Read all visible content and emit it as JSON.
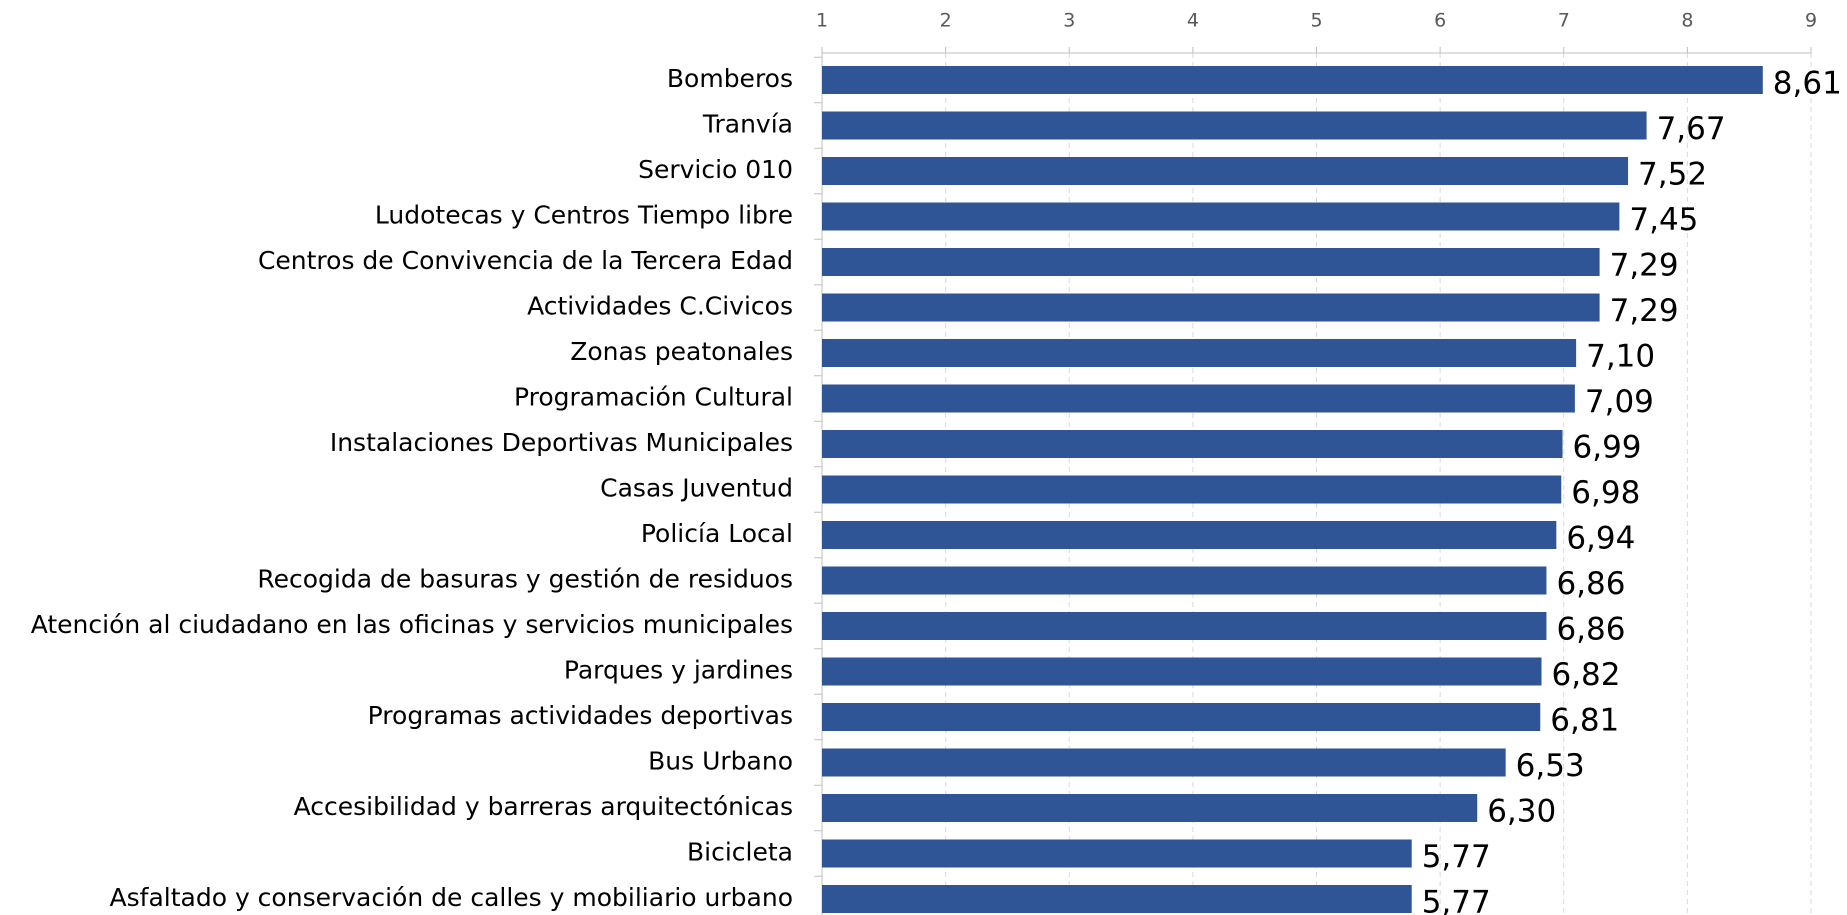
{
  "chart_data": {
    "type": "bar",
    "orientation": "horizontal",
    "categories": [
      "Bomberos",
      "Tranvía",
      "Servicio 010",
      "Ludotecas y Centros Tiempo libre",
      "Centros de Convivencia de la Tercera Edad",
      "Actividades C.Civicos",
      "Zonas peatonales",
      "Programación Cultural",
      "Instalaciones Deportivas Municipales",
      "Casas Juventud",
      "Policía Local",
      "Recogida de basuras y gestión de residuos",
      "Atención al ciudadano en las oficinas y servicios municipales",
      "Parques y jardines",
      "Programas actividades deportivas",
      "Bus Urbano",
      "Accesibilidad y barreras arquitectónicas",
      "Bicicleta",
      "Asfaltado y conservación de calles y mobiliario urbano"
    ],
    "values": [
      8.61,
      7.67,
      7.52,
      7.45,
      7.29,
      7.29,
      7.1,
      7.09,
      6.99,
      6.98,
      6.94,
      6.86,
      6.86,
      6.82,
      6.81,
      6.53,
      6.3,
      5.77,
      5.77
    ],
    "value_labels": [
      "8,61",
      "7,67",
      "7,52",
      "7,45",
      "7,29",
      "7,29",
      "7,10",
      "7,09",
      "6,99",
      "6,98",
      "6,94",
      "6,86",
      "6,86",
      "6,82",
      "6,81",
      "6,53",
      "6,30",
      "5,77",
      "5,77"
    ],
    "color": "#2f5597",
    "xlim": [
      1,
      9
    ],
    "xticks": [
      1,
      2,
      3,
      4,
      5,
      6,
      7,
      8,
      9
    ],
    "grid": true
  }
}
